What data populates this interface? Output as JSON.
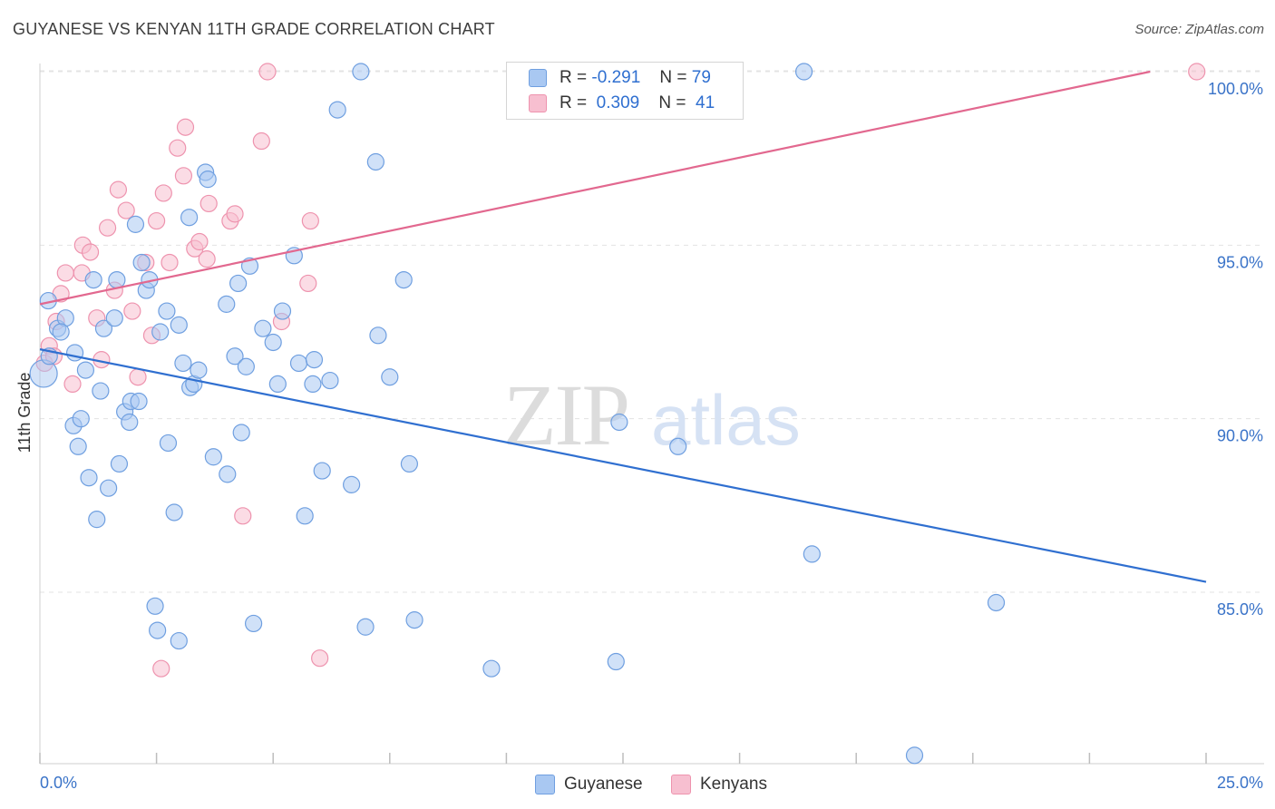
{
  "header": {
    "title": "GUYANESE VS KENYAN 11TH GRADE CORRELATION CHART",
    "source": "Source: ZipAtlas.com"
  },
  "colors": {
    "guyanese_fill": "#a9c8f2",
    "guyanese_stroke": "#6f9fe0",
    "guyanese_line": "#2f6fd0",
    "kenyan_fill": "#f7bfd0",
    "kenyan_stroke": "#ee93ae",
    "kenyan_line": "#e2688f",
    "axis_label": "#3a73c8",
    "grid": "#e3e3e3"
  },
  "legend": {
    "r_label": "R =",
    "n_label": "N =",
    "guyanese_r": "-0.291",
    "guyanese_n": "79",
    "kenyan_r": "0.309",
    "kenyan_n": "41"
  },
  "chart_data": {
    "type": "scatter",
    "title": "GUYANESE VS KENYAN 11TH GRADE CORRELATION CHART",
    "xlabel": "",
    "ylabel": "11th Grade",
    "xlim": [
      0,
      25
    ],
    "ylim": [
      80.3,
      100.7
    ],
    "x_tick_labels": [
      "0.0%",
      "25.0%"
    ],
    "y_tick_values": [
      85,
      90,
      95,
      100
    ],
    "y_tick_labels": [
      "85.0%",
      "90.0%",
      "95.0%",
      "100.0%"
    ],
    "grid": true,
    "legend_position": "top-center",
    "watermark": "ZIPatlas",
    "series": [
      {
        "name": "Guyanese",
        "r": -0.291,
        "n": 79,
        "trend": {
          "x": [
            0,
            25
          ],
          "y": [
            92.0,
            85.3
          ]
        },
        "points": [
          [
            0.18,
            93.4
          ],
          [
            0.38,
            92.6
          ],
          [
            0.55,
            92.9
          ],
          [
            0.2,
            91.8
          ],
          [
            0.45,
            92.5
          ],
          [
            0.75,
            91.9
          ],
          [
            0.98,
            91.4
          ],
          [
            1.15,
            94.0
          ],
          [
            1.37,
            92.6
          ],
          [
            1.6,
            92.9
          ],
          [
            1.65,
            94.0
          ],
          [
            2.05,
            95.6
          ],
          [
            2.18,
            94.5
          ],
          [
            2.28,
            93.7
          ],
          [
            2.35,
            94.0
          ],
          [
            2.58,
            92.5
          ],
          [
            2.72,
            93.1
          ],
          [
            2.98,
            92.7
          ],
          [
            3.2,
            95.8
          ],
          [
            3.55,
            97.1
          ],
          [
            3.6,
            96.9
          ],
          [
            4.0,
            93.3
          ],
          [
            4.25,
            93.9
          ],
          [
            4.5,
            94.4
          ],
          [
            4.78,
            92.6
          ],
          [
            5.0,
            92.2
          ],
          [
            5.2,
            93.1
          ],
          [
            5.45,
            94.7
          ],
          [
            5.55,
            91.6
          ],
          [
            5.88,
            91.7
          ],
          [
            6.22,
            91.1
          ],
          [
            6.38,
            98.9
          ],
          [
            6.88,
            100.0
          ],
          [
            7.2,
            97.4
          ],
          [
            7.25,
            92.4
          ],
          [
            7.5,
            91.2
          ],
          [
            0.72,
            89.8
          ],
          [
            0.88,
            90.0
          ],
          [
            0.82,
            89.2
          ],
          [
            1.05,
            88.3
          ],
          [
            1.3,
            90.8
          ],
          [
            1.47,
            88.0
          ],
          [
            1.22,
            87.1
          ],
          [
            1.7,
            88.7
          ],
          [
            1.82,
            90.2
          ],
          [
            1.92,
            89.9
          ],
          [
            1.95,
            90.5
          ],
          [
            2.12,
            90.5
          ],
          [
            2.75,
            89.3
          ],
          [
            2.88,
            87.3
          ],
          [
            3.07,
            91.6
          ],
          [
            3.22,
            90.9
          ],
          [
            3.3,
            91.0
          ],
          [
            3.4,
            91.4
          ],
          [
            3.72,
            88.9
          ],
          [
            4.02,
            88.4
          ],
          [
            4.18,
            91.8
          ],
          [
            4.32,
            89.6
          ],
          [
            4.42,
            91.5
          ],
          [
            5.1,
            91.0
          ],
          [
            5.68,
            87.2
          ],
          [
            5.85,
            91.0
          ],
          [
            6.05,
            88.5
          ],
          [
            6.68,
            88.1
          ],
          [
            7.8,
            94.0
          ],
          [
            7.92,
            88.7
          ],
          [
            12.42,
            89.9
          ],
          [
            13.68,
            89.2
          ],
          [
            16.38,
            100.0
          ],
          [
            16.55,
            86.1
          ],
          [
            2.47,
            84.6
          ],
          [
            2.52,
            83.9
          ],
          [
            2.98,
            83.6
          ],
          [
            4.58,
            84.1
          ],
          [
            6.98,
            84.0
          ],
          [
            8.03,
            84.2
          ],
          [
            9.68,
            82.8
          ],
          [
            12.35,
            83.0
          ],
          [
            20.5,
            84.7
          ],
          [
            18.75,
            80.3
          ]
        ]
      },
      {
        "name": "Kenyans",
        "r": 0.309,
        "n": 41,
        "trend": {
          "x": [
            0,
            23.8
          ],
          "y": [
            93.3,
            100.0
          ]
        },
        "points": [
          [
            0.1,
            91.6
          ],
          [
            0.2,
            92.1
          ],
          [
            0.3,
            91.8
          ],
          [
            0.35,
            92.8
          ],
          [
            0.45,
            93.6
          ],
          [
            0.55,
            94.2
          ],
          [
            0.7,
            91.0
          ],
          [
            0.9,
            94.2
          ],
          [
            0.92,
            95.0
          ],
          [
            1.08,
            94.8
          ],
          [
            1.22,
            92.9
          ],
          [
            1.32,
            91.7
          ],
          [
            1.45,
            95.5
          ],
          [
            1.6,
            93.7
          ],
          [
            1.68,
            96.6
          ],
          [
            1.85,
            96.0
          ],
          [
            1.98,
            93.1
          ],
          [
            2.1,
            91.2
          ],
          [
            2.27,
            94.5
          ],
          [
            2.4,
            92.4
          ],
          [
            2.5,
            95.7
          ],
          [
            2.65,
            96.5
          ],
          [
            2.78,
            94.5
          ],
          [
            2.95,
            97.8
          ],
          [
            3.08,
            97.0
          ],
          [
            3.12,
            98.4
          ],
          [
            3.32,
            94.9
          ],
          [
            3.42,
            95.1
          ],
          [
            3.58,
            94.6
          ],
          [
            3.62,
            96.2
          ],
          [
            4.08,
            95.7
          ],
          [
            4.18,
            95.9
          ],
          [
            4.35,
            87.2
          ],
          [
            4.75,
            98.0
          ],
          [
            4.88,
            100.0
          ],
          [
            5.18,
            92.8
          ],
          [
            5.75,
            93.9
          ],
          [
            5.8,
            95.7
          ],
          [
            6.0,
            83.1
          ],
          [
            2.6,
            82.8
          ],
          [
            24.8,
            100.0
          ]
        ]
      }
    ]
  }
}
